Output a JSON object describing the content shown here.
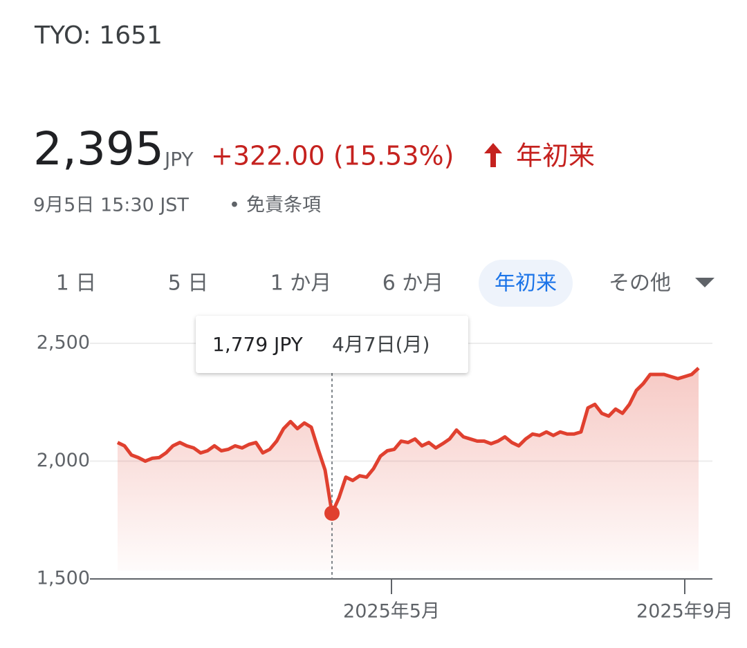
{
  "header": {
    "ticker": "TYO: 1651",
    "price": "2,395",
    "currency": "JPY",
    "change": "+322.00 (15.53%)",
    "period": "年初来",
    "timestamp": "9月5日 15:30 JST",
    "separator": "•",
    "disclaimer": "免責条項"
  },
  "tabs": [
    "1 日",
    "5 日",
    "1 か月",
    "6 か月",
    "年初来",
    "その他"
  ],
  "active_tab": 4,
  "chart_data": {
    "type": "area",
    "series": [
      {
        "name": "TYO: 1651",
        "color": "#e0402f",
        "values": [
          2079,
          2065,
          2026,
          2015,
          2000,
          2012,
          2015,
          2035,
          2065,
          2079,
          2065,
          2056,
          2035,
          2044,
          2065,
          2044,
          2050,
          2065,
          2056,
          2071,
          2079,
          2035,
          2050,
          2085,
          2138,
          2168,
          2138,
          2162,
          2144,
          2050,
          1962,
          1779,
          1844,
          1932,
          1918,
          1938,
          1932,
          1968,
          2021,
          2044,
          2050,
          2085,
          2079,
          2094,
          2065,
          2079,
          2056,
          2074,
          2094,
          2132,
          2103,
          2094,
          2085,
          2085,
          2074,
          2085,
          2103,
          2079,
          2065,
          2094,
          2115,
          2109,
          2124,
          2109,
          2124,
          2115,
          2115,
          2124,
          2226,
          2241,
          2203,
          2191,
          2221,
          2203,
          2241,
          2300,
          2329,
          2368,
          2368,
          2368,
          2359,
          2350,
          2359,
          2368,
          2395
        ]
      }
    ],
    "xlim": [
      0,
      84
    ],
    "xticks": [
      {
        "value": 39.6,
        "label": "2025年5月"
      },
      {
        "value": 82,
        "label": "2025年9月"
      }
    ],
    "ylim": [
      1500,
      2500
    ],
    "yticks": [
      {
        "value": 1500,
        "label": "1,500"
      },
      {
        "value": 2000,
        "label": "2,000"
      },
      {
        "value": 2500,
        "label": "2,500"
      }
    ],
    "grid": true,
    "marker": {
      "value": 1779,
      "label": "1,779 JPY",
      "date": "4月7日(月)"
    }
  }
}
